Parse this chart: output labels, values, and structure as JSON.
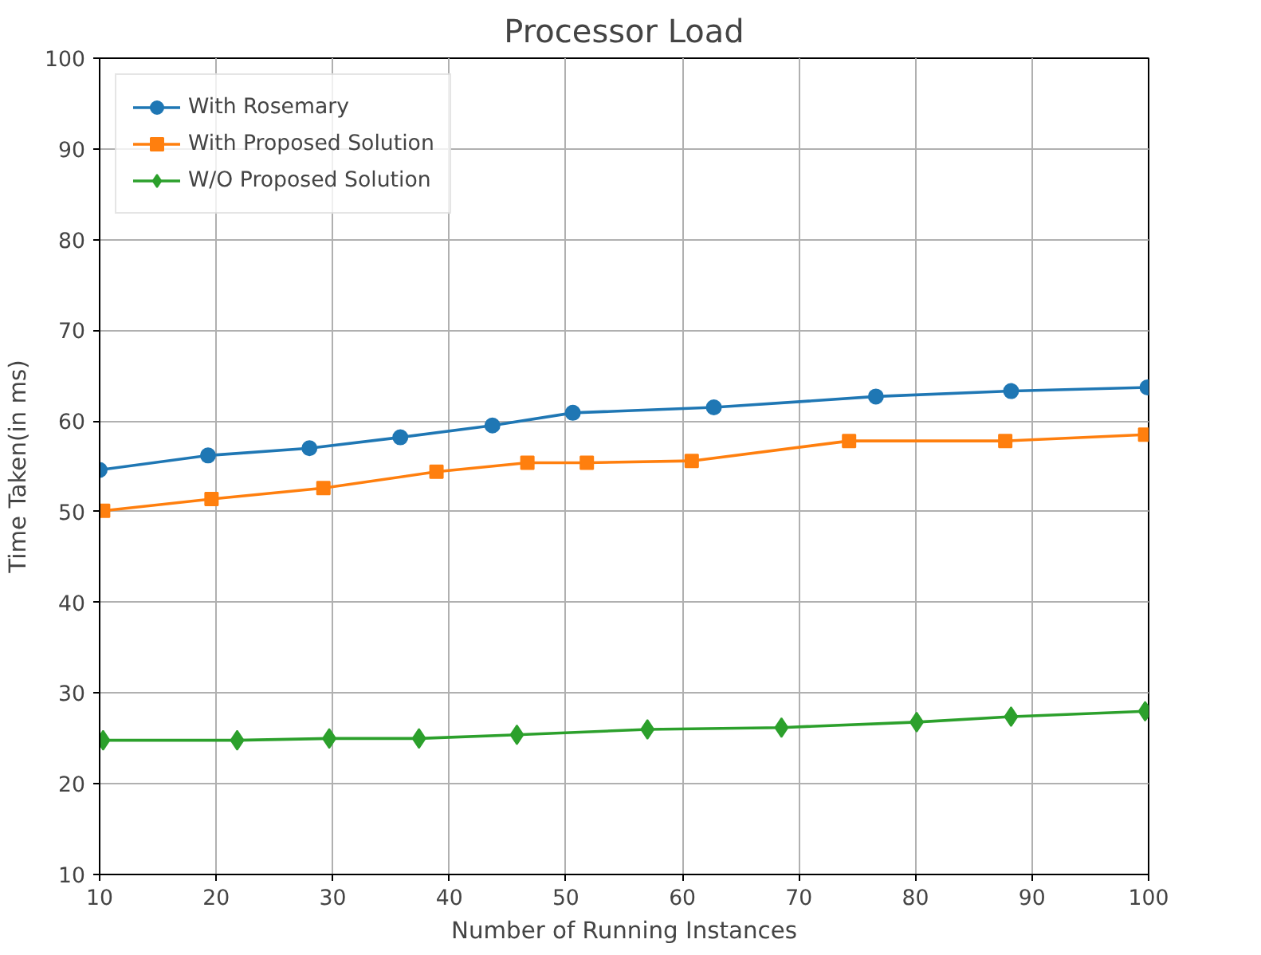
{
  "chart_data": {
    "type": "line",
    "title": "Processor Load",
    "xlabel": "Number of Running Instances",
    "ylabel": "Time Taken(in ms)",
    "xlim": [
      10,
      100
    ],
    "xticks": [
      10,
      20,
      30,
      40,
      50,
      60,
      70,
      80,
      90,
      100
    ],
    "ylim": [
      10,
      100
    ],
    "yticks": [
      10,
      20,
      30,
      40,
      50,
      60,
      70,
      80,
      90,
      100
    ],
    "grid": true,
    "legend": "top left",
    "series": [
      {
        "name": "With Rosemary",
        "color": "#1f77b4",
        "marker": "circle",
        "x": [
          10,
          19.3,
          28,
          35.8,
          43.7,
          50.6,
          62.7,
          76.6,
          88.2,
          99.9
        ],
        "values": [
          54.6,
          56.2,
          57.0,
          58.2,
          59.5,
          60.9,
          61.5,
          62.7,
          63.3,
          63.7
        ]
      },
      {
        "name": "With Proposed Solution",
        "color": "#ff7f0e",
        "marker": "square",
        "x": [
          10.3,
          19.6,
          29.2,
          38.9,
          46.7,
          51.8,
          60.8,
          74.3,
          87.7,
          99.7
        ],
        "values": [
          50.1,
          51.4,
          52.6,
          54.4,
          55.4,
          55.4,
          55.6,
          57.8,
          57.8,
          58.5
        ]
      },
      {
        "name": "W/O Proposed Solution",
        "color": "#2ca02c",
        "marker": "diamond",
        "x": [
          10.3,
          21.8,
          29.7,
          37.4,
          45.8,
          57,
          68.5,
          80.1,
          88.2,
          99.7
        ],
        "values": [
          24.8,
          24.8,
          25.0,
          25.0,
          25.4,
          26.0,
          26.2,
          26.8,
          27.4,
          28.0
        ]
      }
    ]
  }
}
